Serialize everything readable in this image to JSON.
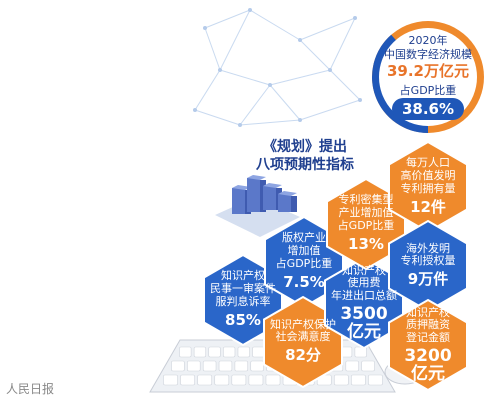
{
  "gdp_circle": {
    "year": "2020年",
    "caption": "中国数字经济规模",
    "amount": "39.2万亿元",
    "share_label": "占GDP比重",
    "share_value": "38.6%",
    "share_fraction": 0.386
  },
  "title": {
    "line1": "《规划》提出",
    "line2": "八项预期性指标"
  },
  "indicators": [
    {
      "label_lines": [
        "知识产权",
        "民事一审案件",
        "服判息诉率"
      ],
      "value": "85%",
      "color": "#2a66c9"
    },
    {
      "label_lines": [
        "版权产业",
        "增加值",
        "占GDP比重"
      ],
      "value": "7.5%",
      "color": "#2a66c9"
    },
    {
      "label_lines": [
        "知识产权保护",
        "社会满意度"
      ],
      "value": "82分",
      "color": "#ef8a2c"
    },
    {
      "label_lines": [
        "知识产权",
        "使用费",
        "年进出口总额"
      ],
      "value": "3500\n亿元",
      "color": "#2a66c9"
    },
    {
      "label_lines": [
        "专利密集型",
        "产业增加值",
        "占GDP比重"
      ],
      "value": "13%",
      "color": "#ef8a2c"
    },
    {
      "label_lines": [
        "每万人口",
        "高价值发明",
        "专利拥有量"
      ],
      "value": "12件",
      "color": "#ef8a2c"
    },
    {
      "label_lines": [
        "海外发明",
        "专利授权量"
      ],
      "value": "9万件",
      "color": "#2a66c9"
    },
    {
      "label_lines": [
        "知识产权",
        "质押融资",
        "登记金额"
      ],
      "value": "3200\n亿元",
      "color": "#ef8a2c"
    }
  ],
  "watermark": "人民日报",
  "colors": {
    "blue": "#2a66c9",
    "orange": "#ef8a2c",
    "navy": "#1f3f8f",
    "ring_blue": "#1f57b8"
  }
}
